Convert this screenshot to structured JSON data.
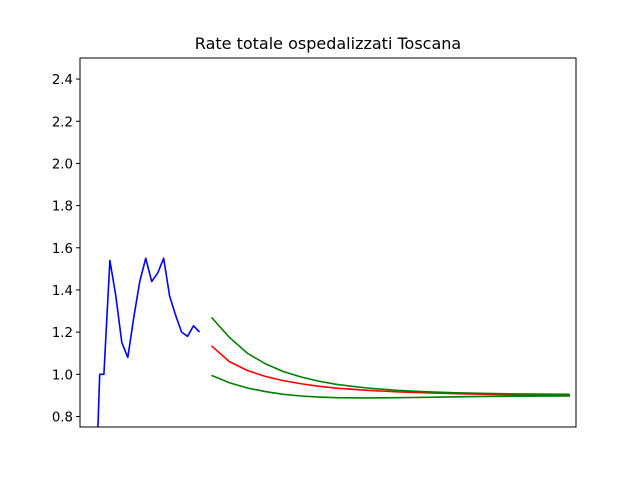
{
  "chart_data": {
    "type": "line",
    "title": "Rate totale ospedalizzati Toscana",
    "xlabel": "",
    "ylabel": "",
    "xlim": [
      -3,
      80
    ],
    "ylim": [
      0.75,
      2.5
    ],
    "yticks": [
      "0.8",
      "1.0",
      "1.2",
      "1.4",
      "1.6",
      "1.8",
      "2.0",
      "2.2",
      "2.4"
    ],
    "xticks": [],
    "grid": false,
    "legend": "none",
    "series": [
      {
        "color": "#0000ff",
        "x": [
          0,
          0.3,
          1,
          2,
          3,
          4,
          5,
          6,
          7,
          8,
          9,
          10,
          11,
          12,
          13,
          14,
          15,
          16,
          17,
          18
        ],
        "y": [
          0.75,
          1.0,
          1.0,
          1.54,
          1.37,
          1.15,
          1.08,
          1.27,
          1.44,
          1.55,
          1.44,
          1.48,
          1.55,
          1.37,
          1.28,
          1.2,
          1.18,
          1.23,
          1.2,
          null
        ]
      },
      {
        "color": "#ff0000",
        "x": [
          19,
          22,
          25,
          28,
          31,
          34,
          37,
          40,
          45,
          50,
          55,
          60,
          65,
          70,
          79
        ],
        "y": [
          1.135,
          1.06,
          1.018,
          0.99,
          0.97,
          0.955,
          0.943,
          0.934,
          0.924,
          0.917,
          0.912,
          0.908,
          0.905,
          0.903,
          0.9
        ]
      },
      {
        "color": "#008000",
        "x": [
          19,
          22,
          25,
          28,
          31,
          34,
          37,
          40,
          45,
          50,
          55,
          60,
          65,
          70,
          79
        ],
        "y": [
          1.27,
          1.175,
          1.1,
          1.05,
          1.013,
          0.987,
          0.967,
          0.952,
          0.935,
          0.924,
          0.917,
          0.912,
          0.909,
          0.907,
          0.905
        ]
      },
      {
        "color": "#008000",
        "x": [
          19,
          22,
          25,
          28,
          31,
          34,
          37,
          40,
          45,
          50,
          55,
          60,
          65,
          70,
          79
        ],
        "y": [
          0.995,
          0.96,
          0.935,
          0.918,
          0.905,
          0.897,
          0.892,
          0.889,
          0.888,
          0.889,
          0.891,
          0.893,
          0.895,
          0.896,
          0.897
        ]
      }
    ]
  }
}
